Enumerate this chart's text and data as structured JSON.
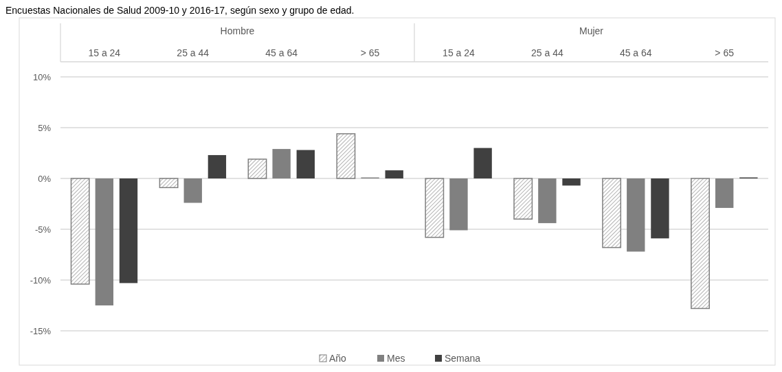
{
  "chart_data": {
    "type": "bar",
    "title": "Encuestas Nacionales de Salud 2009-10 y 2016-17, según sexo y grupo de edad.",
    "categories": [
      "15 a 24",
      "25 a 44",
      "45 a 64",
      "> 65",
      "15 a 24",
      "25 a 44",
      "45 a 64",
      "> 65"
    ],
    "annotations": [
      "Hombre",
      "Mujer"
    ],
    "series": [
      {
        "name": "Año",
        "color": "#7f7f7f",
        "values": [
          -10.4,
          -0.9,
          1.9,
          4.4,
          -5.8,
          -4.0,
          -6.8,
          -12.8
        ]
      },
      {
        "name": "Mes",
        "color": "#808080",
        "values": [
          -12.5,
          -2.4,
          2.9,
          0.1,
          -5.1,
          -4.4,
          -7.2,
          -2.9
        ]
      },
      {
        "name": "Semana",
        "color": "#404040",
        "values": [
          -10.3,
          2.3,
          2.8,
          0.8,
          3.0,
          -0.7,
          -5.9,
          0.1
        ]
      }
    ],
    "ylim": [
      -15,
      10
    ],
    "yticks": [
      {
        "value": -15,
        "label": "-15%"
      },
      {
        "value": -10,
        "label": "-10%"
      },
      {
        "value": -5,
        "label": "-5%"
      },
      {
        "value": 0,
        "label": "0%"
      },
      {
        "value": 5,
        "label": "5%"
      },
      {
        "value": 10,
        "label": "10%"
      }
    ],
    "grid": "y",
    "legend": "bottom"
  }
}
